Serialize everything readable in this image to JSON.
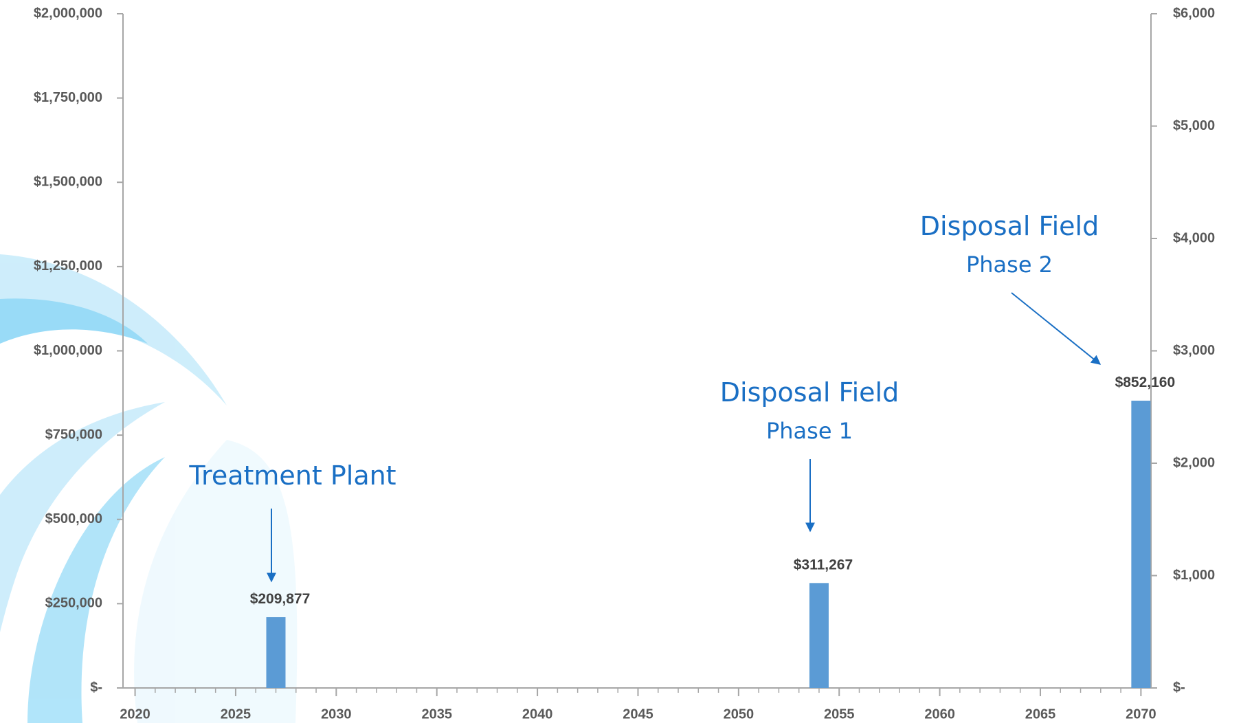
{
  "chart_data": {
    "type": "bar",
    "x": [
      2027,
      2054,
      2070
    ],
    "values": [
      209877,
      311267,
      852160
    ],
    "value_labels": [
      "$209,877",
      "$311,267",
      "$852,160"
    ],
    "color": "#5b9bd5",
    "xlim": [
      2019.4,
      2070.5
    ],
    "xticks": [
      2020,
      2025,
      2030,
      2035,
      2040,
      2045,
      2050,
      2055,
      2060,
      2065,
      2070
    ],
    "ylim": [
      0,
      2000000
    ],
    "yticks": [
      {
        "value": 0,
        "label": "$-"
      },
      {
        "value": 250000,
        "label": "$250,000"
      },
      {
        "value": 500000,
        "label": "$500,000"
      },
      {
        "value": 750000,
        "label": "$750,000"
      },
      {
        "value": 1000000,
        "label": "$1,000,000"
      },
      {
        "value": 1250000,
        "label": "$1,250,000"
      },
      {
        "value": 1500000,
        "label": "$1,500,000"
      },
      {
        "value": 1750000,
        "label": "$1,750,000"
      },
      {
        "value": 2000000,
        "label": "$2,000,000"
      }
    ],
    "y2lim": [
      0,
      6000
    ],
    "y2ticks": [
      {
        "value": 0,
        "label": "$-"
      },
      {
        "value": 1000,
        "label": "$1,000"
      },
      {
        "value": 2000,
        "label": "$2,000"
      },
      {
        "value": 3000,
        "label": "$3,000"
      },
      {
        "value": 4000,
        "label": "$4,000"
      },
      {
        "value": 5000,
        "label": "$5,000"
      },
      {
        "value": 6000,
        "label": "$6,000"
      }
    ],
    "annotations": [
      {
        "text": "Treatment Plant"
      },
      {
        "text": "Disposal Field",
        "subtext": "Phase 1"
      },
      {
        "text": "Disposal Field",
        "subtext": "Phase 2"
      }
    ]
  }
}
